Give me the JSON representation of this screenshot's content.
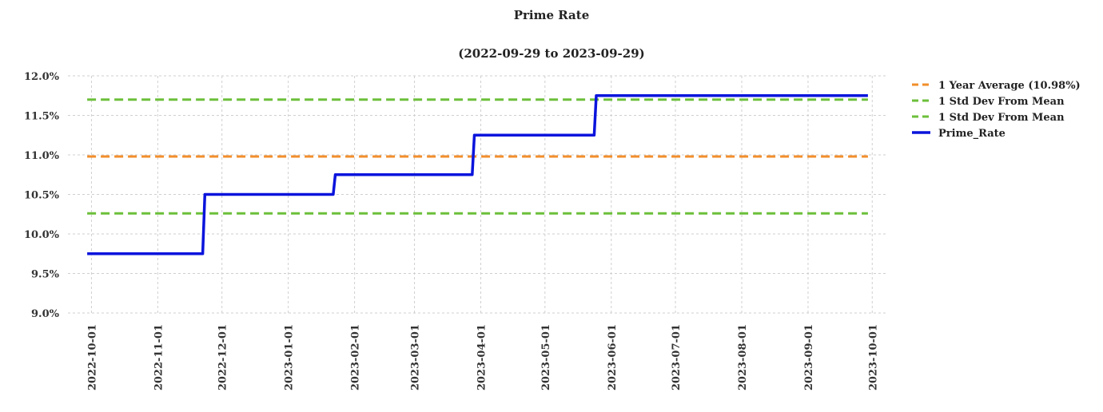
{
  "chart_data": {
    "type": "line",
    "title": "Prime Rate",
    "subtitle": "(2022-09-29 to 2023-09-29)",
    "xlabel": "",
    "ylabel": "",
    "ylim": [
      9.0,
      12.0
    ],
    "y_ticks": [
      "9.0%",
      "9.5%",
      "10.0%",
      "10.5%",
      "11.0%",
      "11.5%",
      "12.0%"
    ],
    "x_ticks": [
      "2022-10-01",
      "2022-11-01",
      "2022-12-01",
      "2023-01-01",
      "2023-02-01",
      "2023-03-01",
      "2023-04-01",
      "2023-05-01",
      "2023-06-01",
      "2023-07-01",
      "2023-08-01",
      "2023-09-01",
      "2023-10-01"
    ],
    "grid": true,
    "legend_position": "right",
    "series": [
      {
        "name": "1 Year Average (10.98%)",
        "style": "dashed",
        "color": "#F28E2B",
        "points": [
          [
            "2022-09-29",
            10.98
          ],
          [
            "2023-09-29",
            10.98
          ]
        ]
      },
      {
        "name": "1 Std Dev From Mean",
        "style": "dashed",
        "color": "#6CBF3A",
        "points": [
          [
            "2022-09-29",
            11.7
          ],
          [
            "2023-09-29",
            11.7
          ]
        ]
      },
      {
        "name": "1 Std Dev From Mean",
        "style": "dashed",
        "color": "#6CBF3A",
        "points": [
          [
            "2022-09-29",
            10.26
          ],
          [
            "2023-09-29",
            10.26
          ]
        ]
      },
      {
        "name": "Prime_Rate",
        "style": "solid",
        "color": "#0A14DC",
        "points": [
          [
            "2022-09-29",
            9.75
          ],
          [
            "2022-11-22",
            9.75
          ],
          [
            "2022-11-23",
            10.5
          ],
          [
            "2023-01-22",
            10.5
          ],
          [
            "2023-01-23",
            10.75
          ],
          [
            "2023-03-28",
            10.75
          ],
          [
            "2023-03-29",
            11.25
          ],
          [
            "2023-05-24",
            11.25
          ],
          [
            "2023-05-25",
            11.75
          ],
          [
            "2023-09-29",
            11.75
          ]
        ]
      }
    ]
  }
}
